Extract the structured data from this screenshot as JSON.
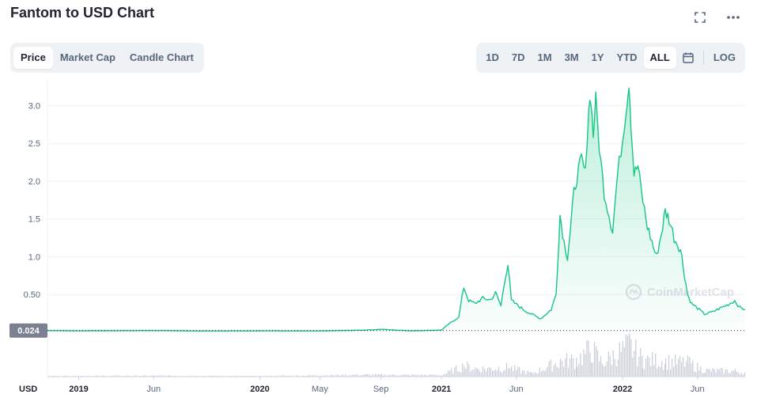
{
  "header": {
    "title": "Fantom to USD Chart"
  },
  "tabs": [
    {
      "label": "Price",
      "active": true
    },
    {
      "label": "Market Cap",
      "active": false
    },
    {
      "label": "Candle Chart",
      "active": false
    }
  ],
  "ranges": [
    {
      "label": "1D",
      "active": false
    },
    {
      "label": "7D",
      "active": false
    },
    {
      "label": "1M",
      "active": false
    },
    {
      "label": "3M",
      "active": false
    },
    {
      "label": "1Y",
      "active": false
    },
    {
      "label": "YTD",
      "active": false
    },
    {
      "label": "ALL",
      "active": true
    }
  ],
  "log_label": "LOG",
  "icons": [
    "fullscreen-icon",
    "more-icon",
    "calendar-icon",
    "coinmarketcap-logo-icon"
  ],
  "watermark": "CoinMarketCap",
  "colors": {
    "line": "#16c784",
    "fill": "#16c784",
    "volume": "#c8ccd6",
    "current_label_bg": "#7b8190"
  },
  "chart_data": {
    "type": "area",
    "currency_label": "USD",
    "current_price_label": "0.024",
    "y_ticks": [
      "0.50",
      "1.0",
      "1.5",
      "2.0",
      "2.5",
      "3.0"
    ],
    "ylim": [
      0,
      3.35
    ],
    "x_ticks": [
      {
        "label": "2019",
        "date": "2019-01-01"
      },
      {
        "label": "Jun",
        "date": "2019-06-01"
      },
      {
        "label": "2020",
        "date": "2020-01-01"
      },
      {
        "label": "May",
        "date": "2020-05-01"
      },
      {
        "label": "Sep",
        "date": "2020-09-01"
      },
      {
        "label": "2021",
        "date": "2021-01-01"
      },
      {
        "label": "Jun",
        "date": "2021-06-01"
      },
      {
        "label": "2022",
        "date": "2022-01-01"
      },
      {
        "label": "Jun",
        "date": "2022-06-01"
      }
    ],
    "x_range": [
      "2018-10-30",
      "2022-09-05"
    ],
    "price_series": [
      [
        "2018-10-30",
        0.024
      ],
      [
        "2019-01-01",
        0.02
      ],
      [
        "2019-03-01",
        0.022
      ],
      [
        "2019-06-01",
        0.024
      ],
      [
        "2019-09-01",
        0.018
      ],
      [
        "2020-01-01",
        0.02
      ],
      [
        "2020-05-01",
        0.018
      ],
      [
        "2020-08-01",
        0.03
      ],
      [
        "2020-09-01",
        0.04
      ],
      [
        "2020-11-01",
        0.02
      ],
      [
        "2021-01-01",
        0.03
      ],
      [
        "2021-01-20",
        0.13
      ],
      [
        "2021-02-05",
        0.2
      ],
      [
        "2021-02-15",
        0.6
      ],
      [
        "2021-02-25",
        0.42
      ],
      [
        "2021-03-10",
        0.38
      ],
      [
        "2021-03-25",
        0.45
      ],
      [
        "2021-04-10",
        0.43
      ],
      [
        "2021-04-20",
        0.52
      ],
      [
        "2021-05-01",
        0.35
      ],
      [
        "2021-05-10",
        0.75
      ],
      [
        "2021-05-15",
        0.9
      ],
      [
        "2021-05-22",
        0.42
      ],
      [
        "2021-06-05",
        0.35
      ],
      [
        "2021-06-20",
        0.28
      ],
      [
        "2021-07-20",
        0.18
      ],
      [
        "2021-08-10",
        0.3
      ],
      [
        "2021-08-20",
        0.5
      ],
      [
        "2021-08-28",
        1.55
      ],
      [
        "2021-09-05",
        1.2
      ],
      [
        "2021-09-12",
        1.0
      ],
      [
        "2021-09-20",
        1.5
      ],
      [
        "2021-09-25",
        1.85
      ],
      [
        "2021-10-01",
        2.05
      ],
      [
        "2021-10-10",
        2.3
      ],
      [
        "2021-10-18",
        2.1
      ],
      [
        "2021-10-25",
        3.0
      ],
      [
        "2021-10-29",
        3.1
      ],
      [
        "2021-11-03",
        2.6
      ],
      [
        "2021-11-08",
        3.1
      ],
      [
        "2021-11-15",
        2.45
      ],
      [
        "2021-11-25",
        1.85
      ],
      [
        "2021-12-05",
        1.55
      ],
      [
        "2021-12-12",
        1.35
      ],
      [
        "2021-12-22",
        2.1
      ],
      [
        "2022-01-01",
        2.55
      ],
      [
        "2022-01-10",
        3.05
      ],
      [
        "2022-01-14",
        3.3
      ],
      [
        "2022-01-18",
        2.75
      ],
      [
        "2022-01-24",
        2.1
      ],
      [
        "2022-02-01",
        2.2
      ],
      [
        "2022-02-08",
        1.85
      ],
      [
        "2022-02-20",
        1.4
      ],
      [
        "2022-03-01",
        1.2
      ],
      [
        "2022-03-10",
        1.0
      ],
      [
        "2022-03-20",
        1.3
      ],
      [
        "2022-03-28",
        1.6
      ],
      [
        "2022-04-05",
        1.5
      ],
      [
        "2022-04-15",
        1.25
      ],
      [
        "2022-04-28",
        1.1
      ],
      [
        "2022-05-06",
        0.75
      ],
      [
        "2022-05-12",
        0.5
      ],
      [
        "2022-05-20",
        0.38
      ],
      [
        "2022-06-01",
        0.32
      ],
      [
        "2022-06-15",
        0.24
      ],
      [
        "2022-07-01",
        0.27
      ],
      [
        "2022-07-20",
        0.33
      ],
      [
        "2022-08-05",
        0.38
      ],
      [
        "2022-08-15",
        0.42
      ],
      [
        "2022-08-25",
        0.33
      ],
      [
        "2022-09-05",
        0.3
      ]
    ],
    "volume_series": [
      [
        "2018-10-30",
        0.02
      ],
      [
        "2019-06-01",
        0.03
      ],
      [
        "2020-01-01",
        0.02
      ],
      [
        "2020-08-01",
        0.06
      ],
      [
        "2021-01-01",
        0.05
      ],
      [
        "2021-02-15",
        0.35
      ],
      [
        "2021-03-15",
        0.25
      ],
      [
        "2021-05-15",
        0.3
      ],
      [
        "2021-07-01",
        0.1
      ],
      [
        "2021-08-28",
        0.5
      ],
      [
        "2021-10-01",
        0.55
      ],
      [
        "2021-10-29",
        0.9
      ],
      [
        "2021-11-20",
        0.45
      ],
      [
        "2022-01-14",
        1.0
      ],
      [
        "2022-02-10",
        0.55
      ],
      [
        "2022-03-28",
        0.5
      ],
      [
        "2022-05-12",
        0.45
      ],
      [
        "2022-06-15",
        0.2
      ],
      [
        "2022-08-15",
        0.18
      ],
      [
        "2022-09-05",
        0.12
      ]
    ]
  }
}
